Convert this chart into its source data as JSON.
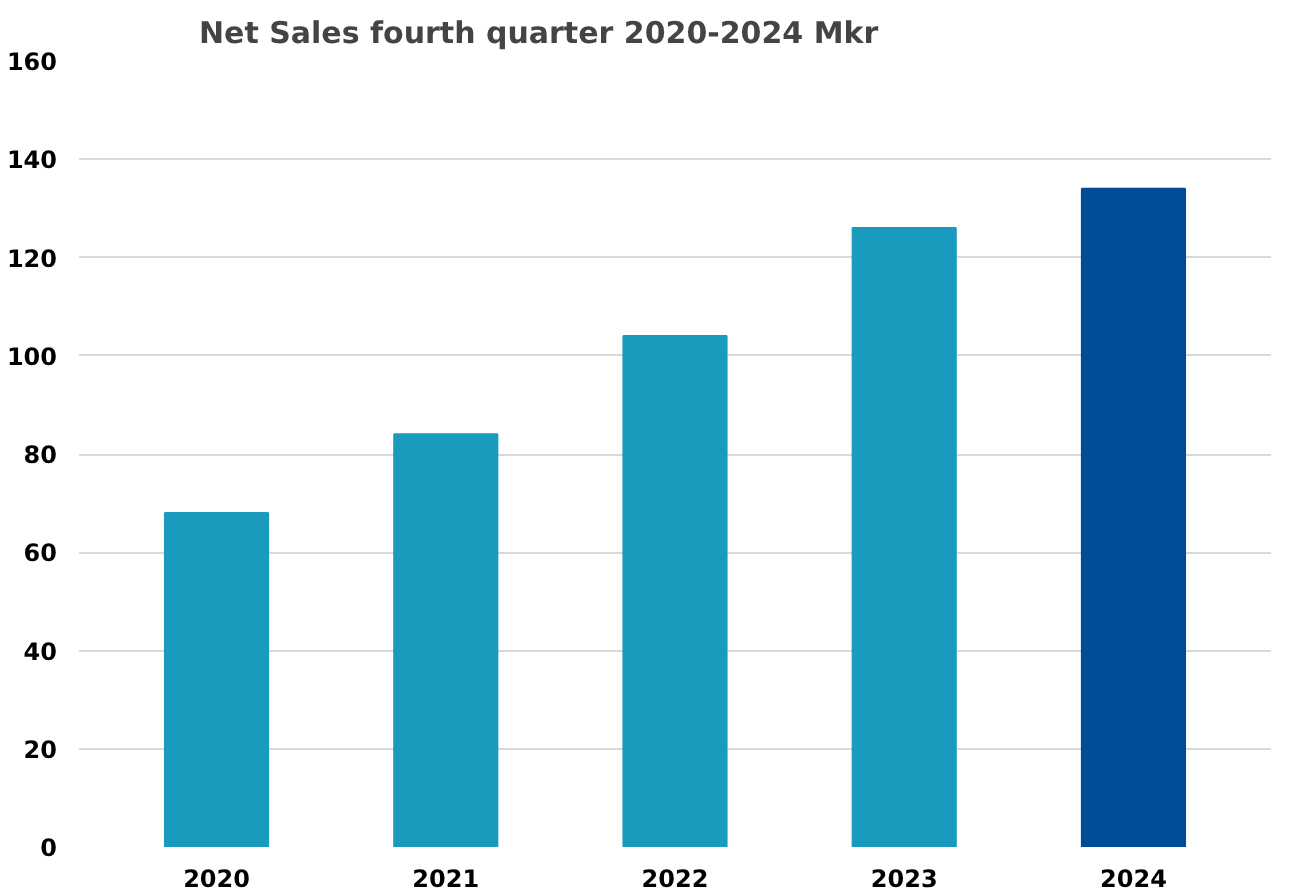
{
  "chart_data": {
    "type": "bar",
    "title": "Net Sales fourth quarter 2020-2024 Mkr",
    "categories": [
      "2020",
      "2021",
      "2022",
      "2023",
      "2024"
    ],
    "values": [
      68,
      84,
      104,
      126,
      134
    ],
    "colors": [
      "#1a9bbd",
      "#1a9bbd",
      "#1a9bbd",
      "#1a9bbd",
      "#004c97"
    ],
    "ylim": [
      0,
      160
    ],
    "yticks": [
      0,
      20,
      40,
      60,
      80,
      100,
      120,
      140,
      160
    ],
    "grid": "y"
  }
}
